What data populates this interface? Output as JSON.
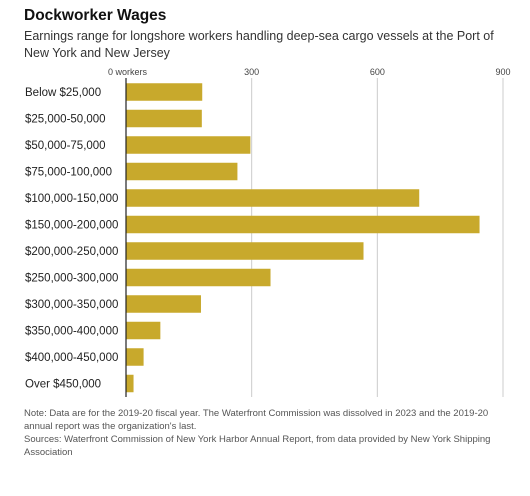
{
  "title": "Dockworker Wages",
  "subtitle": "Earnings range for longshore workers handling deep-sea cargo vessels at the Port of New York and New Jersey",
  "note": "Note: Data are for the 2019-20 fiscal year. The Waterfront Commission was dissolved in 2023 and the 2019-20 annual report was the organization's last.",
  "sources": "Sources: Waterfront Commission of New York Harbor Annual Report, from data provided by New York Shipping Association",
  "colors": {
    "bar": "#c8a92c",
    "axis": "#222222",
    "grid": "#cccccc"
  },
  "chart_data": {
    "type": "bar",
    "orientation": "horizontal",
    "title": "Dockworker Wages",
    "subtitle": "Earnings range for longshore workers handling deep-sea cargo vessels at the Port of New York and New Jersey",
    "xlabel": "",
    "ylabel": "",
    "xlim": [
      0,
      900
    ],
    "ticks": [
      0,
      300,
      600,
      900
    ],
    "tick_labels": [
      "0 workers",
      "300",
      "600",
      "900"
    ],
    "grid": true,
    "legend": "none",
    "categories": [
      "Below $25,000",
      "$25,000-50,000",
      "$50,000-75,000",
      "$75,000-100,000",
      "$100,000-150,000",
      "$150,000-200,000",
      "$200,000-250,000",
      "$250,000-300,000",
      "$300,000-350,000",
      "$350,000-400,000",
      "$400,000-450,000",
      "Over $450,000"
    ],
    "values": [
      182,
      181,
      297,
      266,
      700,
      844,
      567,
      345,
      179,
      82,
      42,
      18
    ]
  }
}
